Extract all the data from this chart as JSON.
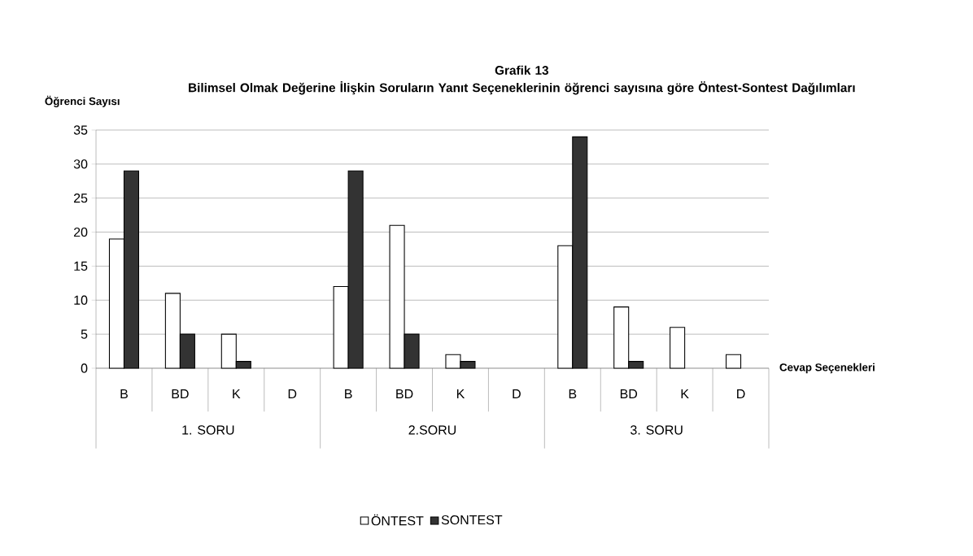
{
  "chart_data": {
    "type": "bar",
    "title": "Grafik 13",
    "subtitle": "Bilimsel Olmak Değerine İlişkin Soruların Yanıt Seçeneklerinin öğrenci sayısına göre Öntest-Sontest Dağılımları",
    "xlabel": "Cevap Seçenekleri",
    "ylabel": "Öğrenci Sayısı",
    "categories": [
      "B",
      "BD",
      "K",
      "D",
      "B",
      "BD",
      "K",
      "D",
      "B",
      "BD",
      "K",
      "D"
    ],
    "annotations": [
      "1. SORU",
      "2.SORU",
      "3. SORU"
    ],
    "series": [
      {
        "name": "ÖNTEST",
        "color": "#ffffff",
        "values": [
          19,
          11,
          5,
          0,
          12,
          21,
          2,
          0,
          18,
          9,
          6,
          2
        ]
      },
      {
        "name": "SONTEST",
        "color": "#333333",
        "values": [
          29,
          5,
          1,
          0,
          29,
          5,
          1,
          0,
          34,
          1,
          0,
          0
        ]
      }
    ],
    "ylim": [
      0,
      35
    ],
    "yticks": [
      0,
      5,
      10,
      15,
      20,
      25,
      30,
      35
    ],
    "grid": "y",
    "legend": "bottom"
  }
}
